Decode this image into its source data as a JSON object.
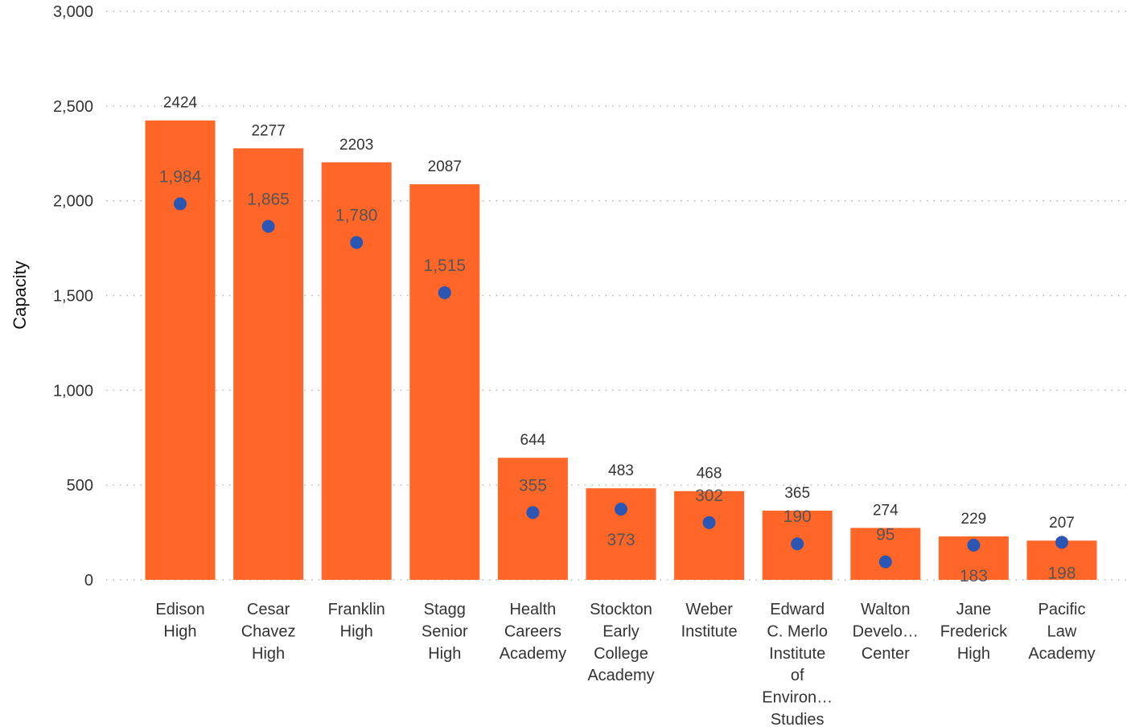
{
  "chart_data": {
    "type": "bar",
    "ylabel": "Capacity",
    "ylim": [
      0,
      3000
    ],
    "yticks": [
      0,
      500,
      1000,
      1500,
      2000,
      2500,
      3000
    ],
    "ytick_labels": [
      "0",
      "500",
      "1,000",
      "1,500",
      "2,000",
      "2,500",
      "3,000"
    ],
    "grid": true,
    "colors": {
      "bar": "#ff6627",
      "dot": "#2b56b3"
    },
    "categories": [
      [
        "Edison",
        "High"
      ],
      [
        "Cesar",
        "Chavez",
        "High"
      ],
      [
        "Franklin",
        "High"
      ],
      [
        "Stagg",
        "Senior",
        "High"
      ],
      [
        "Health",
        "Careers",
        "Academy"
      ],
      [
        "Stockton",
        "Early",
        "College",
        "Academy"
      ],
      [
        "Weber",
        "Institute"
      ],
      [
        "Edward",
        "C. Merlo",
        "Institute",
        "of",
        "Environ…",
        "Studies"
      ],
      [
        "Walton",
        "Develo…",
        "Center"
      ],
      [
        "Jane",
        "Frederick",
        "High"
      ],
      [
        "Pacific",
        "Law",
        "Academy"
      ]
    ],
    "series": [
      {
        "kind": "bar",
        "values": [
          2424,
          2277,
          2203,
          2087,
          644,
          483,
          468,
          365,
          274,
          229,
          207
        ],
        "labels": [
          "2424",
          "2277",
          "2203",
          "2087",
          "644",
          "483",
          "468",
          "365",
          "274",
          "229",
          "207"
        ]
      },
      {
        "kind": "dot",
        "values": [
          1984,
          1865,
          1780,
          1515,
          355,
          373,
          302,
          190,
          95,
          183,
          198
        ],
        "labels": [
          "1,984",
          "1,865",
          "1,780",
          "1,515",
          "355",
          "373",
          "302",
          "190",
          "95",
          "183",
          "198"
        ]
      }
    ]
  }
}
